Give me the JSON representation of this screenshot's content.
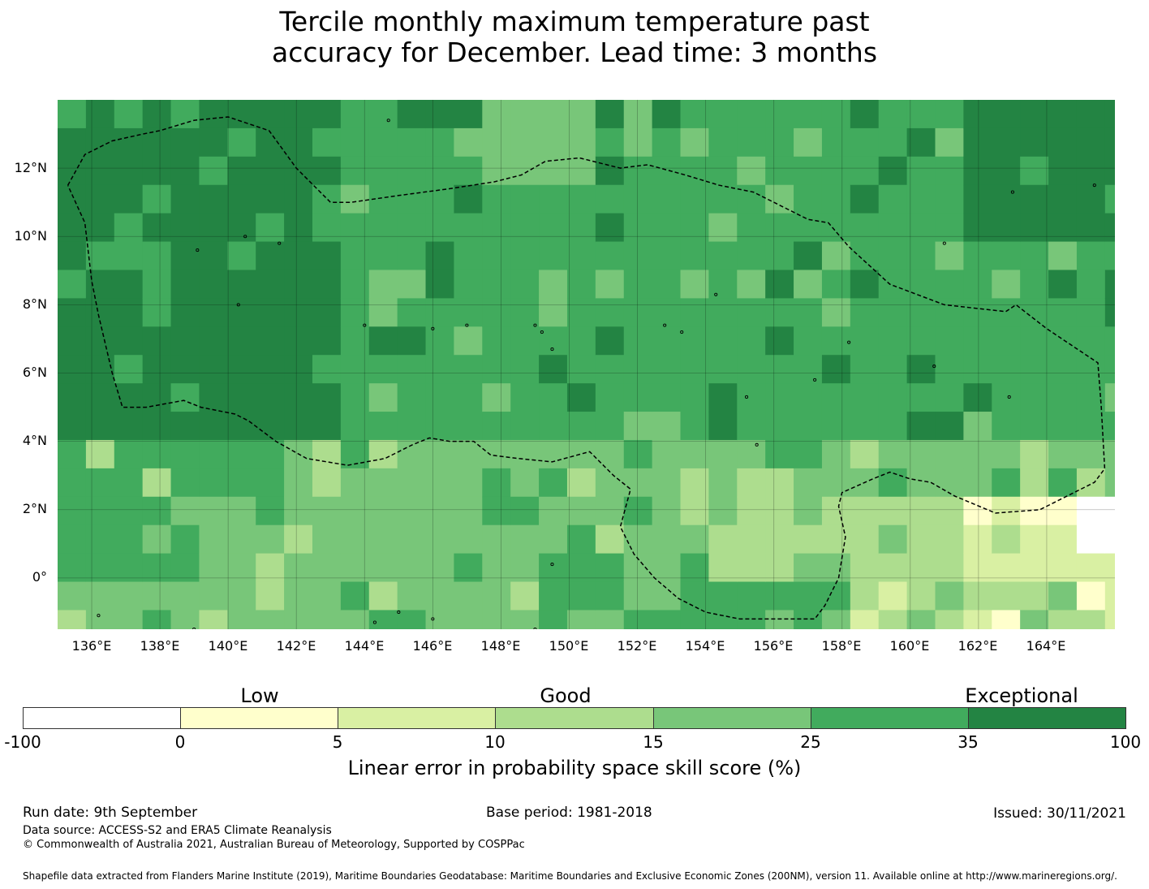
{
  "title": {
    "line1": "Tercile monthly maximum temperature past",
    "line2": "accuracy for December. Lead time: 3 months"
  },
  "map": {
    "lon_range": [
      135,
      166
    ],
    "lat_range": [
      -1.5,
      14
    ],
    "x_ticks": [
      "136°E",
      "138°E",
      "140°E",
      "142°E",
      "144°E",
      "146°E",
      "148°E",
      "150°E",
      "152°E",
      "154°E",
      "156°E",
      "158°E",
      "160°E",
      "162°E",
      "164°E"
    ],
    "x_tick_values": [
      136,
      138,
      140,
      142,
      144,
      146,
      148,
      150,
      152,
      154,
      156,
      158,
      160,
      162,
      164
    ],
    "y_ticks": [
      "12°N",
      "10°N",
      "8°N",
      "6°N",
      "4°N",
      "2°N",
      "0°"
    ],
    "y_tick_values": [
      12,
      10,
      8,
      6,
      4,
      2,
      0
    ],
    "grid_cell_deg": 0.83,
    "grid_lines": true,
    "boundary_style": "dashed",
    "skill_levels": [
      "-100 to 0",
      "0 to 5",
      "5 to 10",
      "10 to 15",
      "15 to 25",
      "25 to 35",
      "35 to 100"
    ],
    "skill_colors": [
      "#ffffff",
      "#ffffcc",
      "#d9f0a3",
      "#addd8e",
      "#78c679",
      "#41ab5d",
      "#238443"
    ],
    "eez_boundary": [
      [
        135.3,
        11.5
      ],
      [
        135.8,
        12.4
      ],
      [
        136.6,
        12.8
      ],
      [
        137.5,
        13.0
      ],
      [
        138.0,
        13.1
      ],
      [
        139.0,
        13.4
      ],
      [
        140.0,
        13.5
      ],
      [
        141.2,
        13.1
      ],
      [
        142.0,
        12.0
      ],
      [
        143.0,
        11.0
      ],
      [
        143.6,
        11.0
      ],
      [
        145.0,
        11.2
      ],
      [
        146.5,
        11.4
      ],
      [
        147.8,
        11.6
      ],
      [
        148.6,
        11.8
      ],
      [
        149.3,
        12.2
      ],
      [
        150.3,
        12.3
      ],
      [
        151.5,
        12.0
      ],
      [
        152.3,
        12.1
      ],
      [
        153.4,
        11.8
      ],
      [
        154.4,
        11.5
      ],
      [
        155.4,
        11.3
      ],
      [
        156.2,
        10.9
      ],
      [
        157.0,
        10.5
      ],
      [
        157.6,
        10.4
      ],
      [
        158.2,
        9.7
      ],
      [
        159.4,
        8.6
      ],
      [
        161.0,
        8.0
      ],
      [
        162.8,
        7.8
      ],
      [
        163.1,
        8.0
      ],
      [
        164.0,
        7.3
      ],
      [
        165.5,
        6.3
      ],
      [
        165.6,
        5.0
      ],
      [
        165.7,
        3.2
      ],
      [
        165.4,
        2.8
      ],
      [
        164.6,
        2.4
      ],
      [
        163.8,
        2.0
      ],
      [
        162.5,
        1.9
      ],
      [
        161.3,
        2.4
      ],
      [
        160.6,
        2.8
      ],
      [
        160.0,
        2.9
      ],
      [
        159.4,
        3.1
      ],
      [
        158.9,
        2.9
      ],
      [
        158.0,
        2.5
      ],
      [
        157.9,
        2.1
      ],
      [
        158.1,
        1.2
      ],
      [
        157.9,
        0.0
      ],
      [
        157.5,
        -0.8
      ],
      [
        157.2,
        -1.2
      ],
      [
        156.2,
        -1.2
      ],
      [
        155.0,
        -1.2
      ],
      [
        154.0,
        -1.0
      ],
      [
        153.2,
        -0.6
      ],
      [
        152.5,
        0.0
      ],
      [
        151.9,
        0.7
      ],
      [
        151.5,
        1.5
      ],
      [
        151.8,
        2.6
      ],
      [
        151.3,
        3.0
      ],
      [
        150.6,
        3.7
      ],
      [
        149.5,
        3.4
      ],
      [
        148.5,
        3.5
      ],
      [
        147.7,
        3.6
      ],
      [
        147.2,
        4.0
      ],
      [
        146.5,
        4.0
      ],
      [
        145.9,
        4.1
      ],
      [
        145.4,
        3.9
      ],
      [
        144.6,
        3.5
      ],
      [
        143.5,
        3.3
      ],
      [
        142.3,
        3.5
      ],
      [
        141.4,
        4.0
      ],
      [
        140.6,
        4.6
      ],
      [
        140.2,
        4.8
      ],
      [
        139.2,
        5.0
      ],
      [
        138.7,
        5.2
      ],
      [
        137.6,
        5.0
      ],
      [
        136.9,
        5.0
      ],
      [
        136.6,
        6.0
      ],
      [
        136.2,
        7.7
      ],
      [
        136.0,
        8.7
      ],
      [
        135.8,
        10.4
      ],
      [
        135.3,
        11.5
      ]
    ],
    "islands": [
      [
        144.7,
        13.4
      ],
      [
        139.1,
        9.6
      ],
      [
        140.5,
        10.0
      ],
      [
        141.5,
        9.8
      ],
      [
        140.3,
        8.0
      ],
      [
        144.0,
        7.4
      ],
      [
        146.0,
        7.3
      ],
      [
        147.0,
        7.4
      ],
      [
        149.2,
        7.2
      ],
      [
        149.0,
        7.4
      ],
      [
        149.5,
        6.7
      ],
      [
        152.8,
        7.4
      ],
      [
        153.3,
        7.2
      ],
      [
        154.3,
        8.3
      ],
      [
        155.2,
        5.3
      ],
      [
        157.2,
        5.8
      ],
      [
        158.2,
        6.9
      ],
      [
        160.7,
        6.2
      ],
      [
        162.9,
        5.3
      ],
      [
        161.0,
        9.8
      ],
      [
        163.0,
        11.3
      ],
      [
        165.4,
        11.5
      ],
      [
        149.5,
        0.4
      ],
      [
        155.5,
        3.9
      ],
      [
        136.2,
        -1.1
      ],
      [
        139.0,
        -1.5
      ],
      [
        144.3,
        -1.3
      ],
      [
        145.0,
        -1.0
      ],
      [
        146.0,
        -1.2
      ],
      [
        149.0,
        -1.5
      ]
    ]
  },
  "colorbar": {
    "category_labels": [
      "Low",
      "Good",
      "Exceptional"
    ],
    "ticks": [
      "-100",
      "0",
      "5",
      "10",
      "15",
      "25",
      "35",
      "100"
    ],
    "label": "Linear error in probability space skill score (%)"
  },
  "footer": {
    "run_date": "Run date: 9th September",
    "base_period": "Base period: 1981-2018",
    "issued": "Issued: 30/11/2021",
    "data_source": "Data source: ACCESS-S2 and ERA5 Climate Reanalysis",
    "copyright": "© Commonwealth of Australia 2021, Australian Bureau of Meteorology, Supported by COSPPac",
    "shapefile": "Shapefile data extracted from Flanders Marine Institute (2019), Maritime Boundaries Geodatabase: Maritime Boundaries and Exclusive Economic Zones (200NM), version 11. Available online at http://www.marineregions.org/."
  }
}
